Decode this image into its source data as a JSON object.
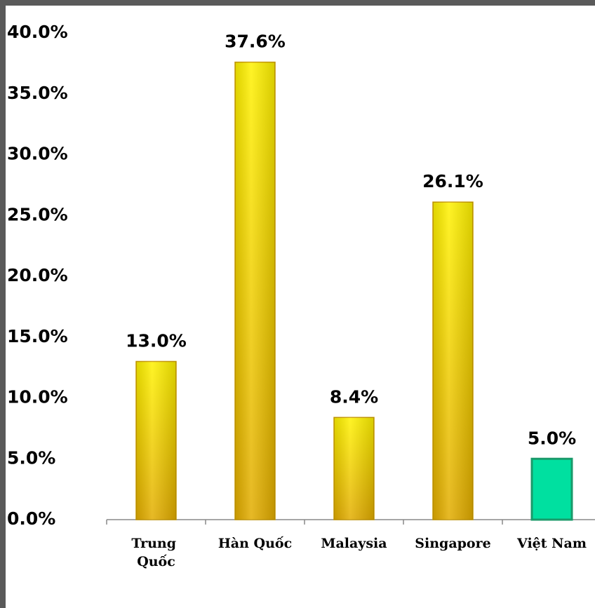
{
  "chart_data": {
    "type": "bar",
    "categories": [
      "Trung Quốc",
      "Hàn Quốc",
      "Malaysia",
      "Singapore",
      "Việt Nam"
    ],
    "values": [
      13.0,
      37.6,
      8.4,
      26.1,
      5.0
    ],
    "value_labels": [
      "13.0%",
      "37.6%",
      "8.4%",
      "26.1%",
      "5.0%"
    ],
    "colors": [
      "#ffd400",
      "#ffd400",
      "#ffd400",
      "#ffd400",
      "#00e0a0"
    ],
    "ylim": [
      0,
      40
    ],
    "yticks": [
      {
        "value": 0,
        "label": "0.0%"
      },
      {
        "value": 5,
        "label": "5.0%"
      },
      {
        "value": 10,
        "label": "10.0%"
      },
      {
        "value": 15,
        "label": "15.0%"
      },
      {
        "value": 20,
        "label": "20.0%"
      },
      {
        "value": 25,
        "label": "25.0%"
      },
      {
        "value": 30,
        "label": "30.0%"
      },
      {
        "value": 35,
        "label": "35.0%"
      },
      {
        "value": 40,
        "label": "40.0%"
      }
    ],
    "grid": false
  }
}
